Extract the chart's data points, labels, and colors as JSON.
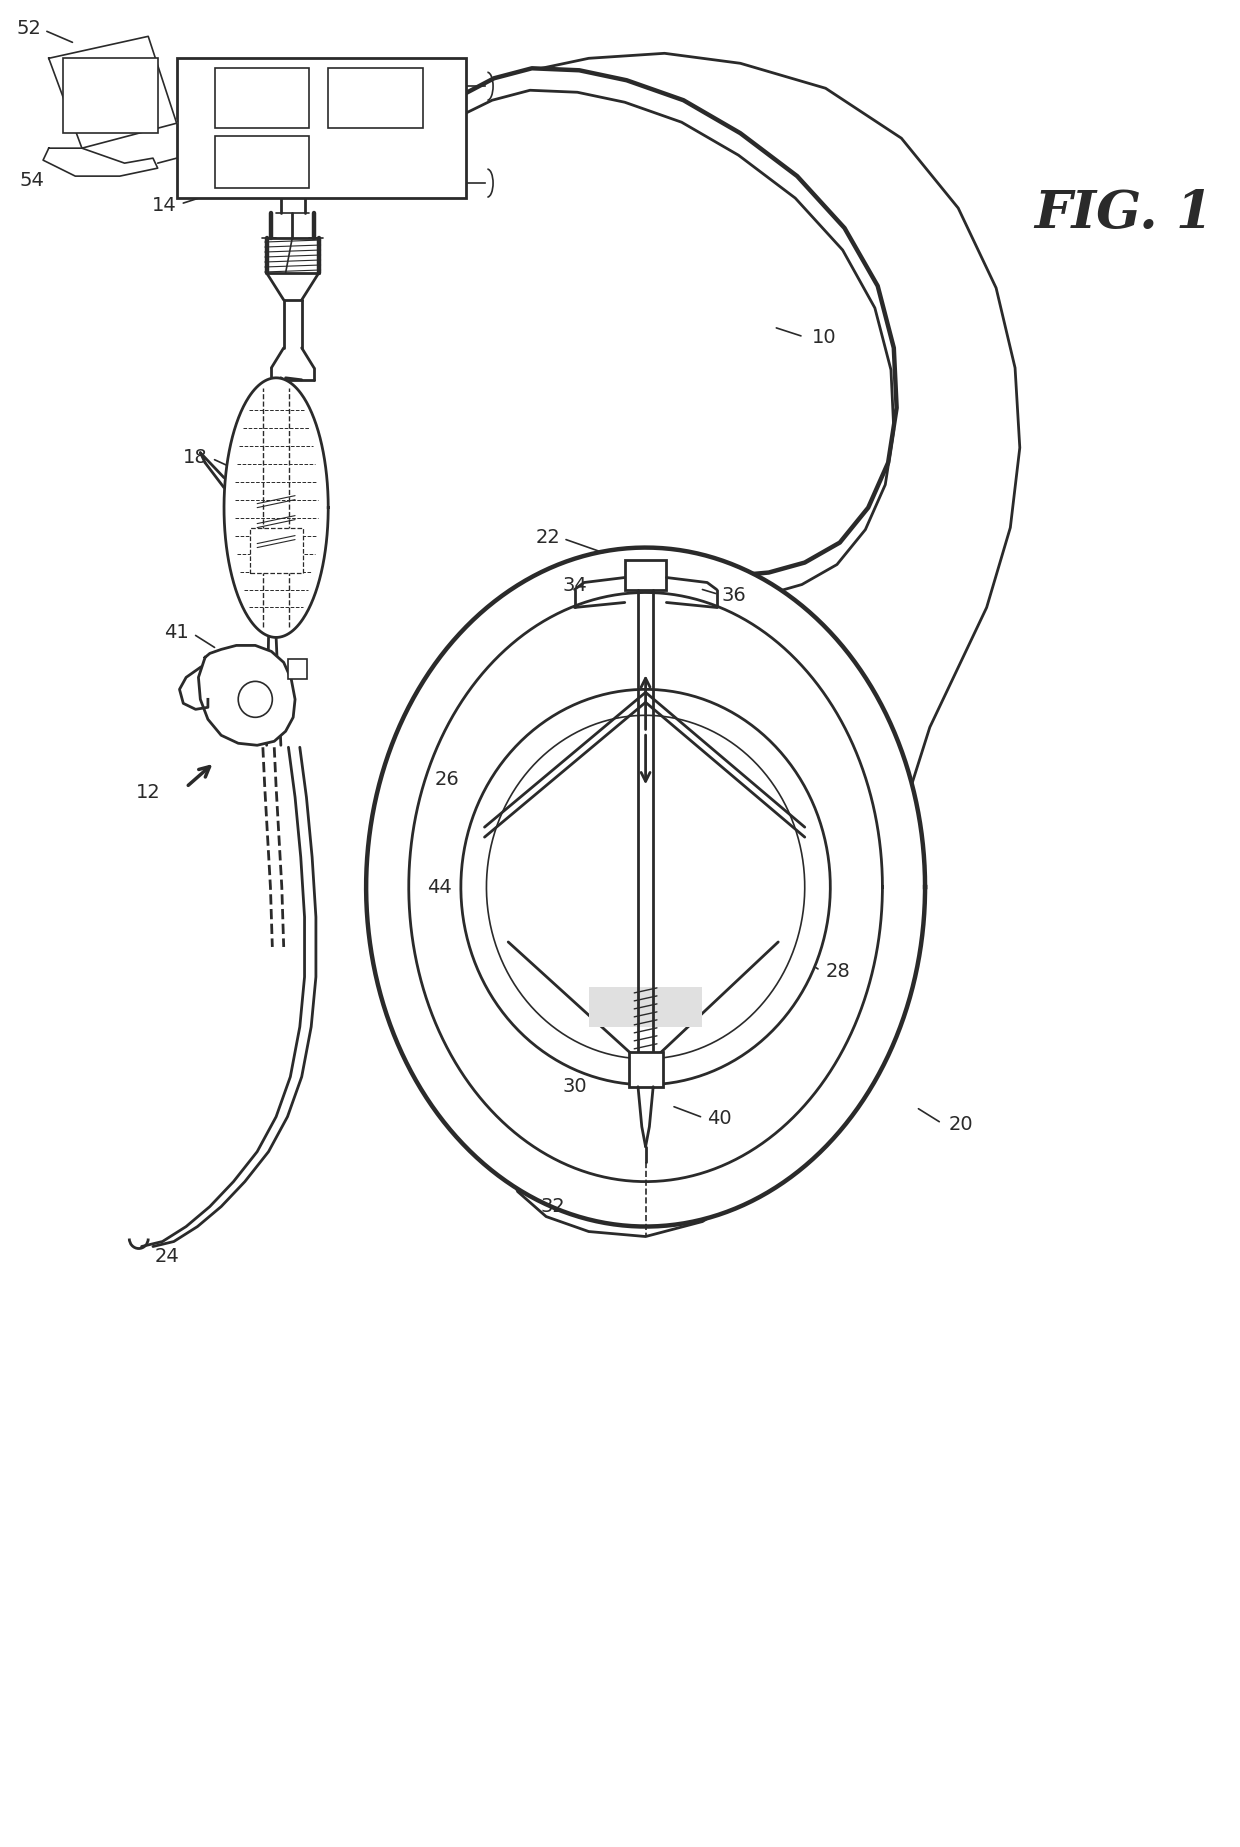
{
  "title": "FIG. 1",
  "bg_color": "#ffffff",
  "line_color": "#2a2a2a",
  "fig_width": 12.4,
  "fig_height": 18.47,
  "dpi": 100
}
